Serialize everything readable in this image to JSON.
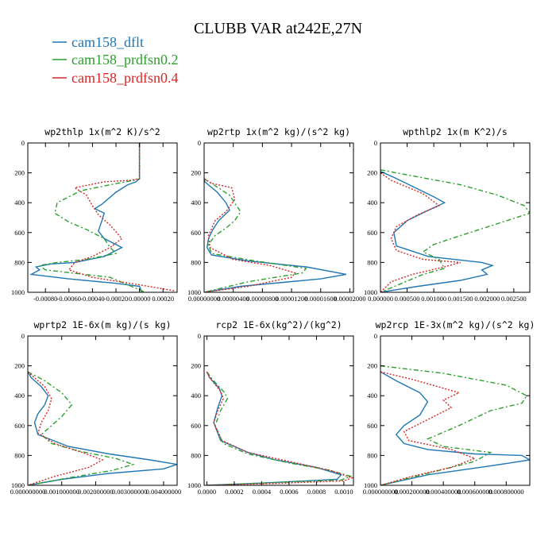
{
  "figure": {
    "title": "CLUBB VAR at242E,27N"
  },
  "legend": [
    {
      "name": "cam158_dflt",
      "color": "#1f77b4"
    },
    {
      "name": "cam158_prdfsn0.2",
      "color": "#2ca02c"
    },
    {
      "name": "cam158_prdfsn0.4",
      "color": "#d62728"
    }
  ],
  "chart_data": [
    {
      "type": "line",
      "title": "wp2thlp  1x(m^2 K)/s^2",
      "ylim": [
        1000,
        0
      ],
      "xlim": [
        -0.00095,
        0.00032
      ],
      "yticks": [
        "0",
        "200",
        "400",
        "600",
        "800",
        "1000"
      ],
      "xticks": [
        "-0.00080",
        "-0.00060",
        "-0.00040",
        "-0.00020",
        "0.00000",
        "0.00020"
      ],
      "xtick_values": [
        -0.0008,
        -0.0006,
        -0.0004,
        -0.0002,
        0.0,
        0.0002
      ],
      "series": [
        {
          "name": "cam158_dflt",
          "x": [
            0.0,
            0.0,
            -3e-05,
            -0.0001,
            -0.0002,
            -0.00032,
            -0.00038,
            -0.0003,
            -0.00032,
            -0.00035,
            -0.0003,
            -0.00015,
            -0.0003,
            -0.00055,
            -0.00075,
            -0.00088,
            -0.00085,
            -0.00092,
            -0.0006,
            -0.0002,
            0.0,
            2e-05
          ],
          "y": [
            0,
            240,
            260,
            280,
            330,
            410,
            440,
            470,
            520,
            590,
            640,
            700,
            760,
            800,
            810,
            830,
            850,
            880,
            910,
            940,
            960,
            1000
          ]
        },
        {
          "name": "cam158_prdfsn0.2",
          "x": [
            0.0,
            0.0,
            -5e-05,
            -0.00025,
            -0.0005,
            -0.0007,
            -0.00072,
            -0.0006,
            -0.00045,
            -0.0003,
            -0.00025,
            -0.0002,
            -0.00045,
            -0.0007,
            -0.00085,
            -0.0008,
            -0.00025,
            5e-05
          ],
          "y": [
            0,
            240,
            250,
            280,
            320,
            400,
            470,
            530,
            580,
            640,
            700,
            740,
            780,
            800,
            820,
            850,
            900,
            1000
          ]
        },
        {
          "name": "cam158_prdfsn0.4",
          "x": [
            0.0,
            0.0,
            -8e-05,
            -0.0003,
            -0.00055,
            -0.00045,
            -0.0004,
            -0.00035,
            -0.00025,
            -0.00015,
            -0.00025,
            -0.0004,
            -0.00055,
            -0.0006,
            -0.0004,
            0.0,
            0.0003
          ],
          "y": [
            0,
            240,
            250,
            260,
            300,
            350,
            420,
            480,
            550,
            640,
            700,
            760,
            800,
            850,
            900,
            950,
            990
          ]
        }
      ]
    },
    {
      "type": "line",
      "title": "wp2rtp  1x(m^2 kg)/(s^2 kg)",
      "ylim": [
        1000,
        0
      ],
      "xlim": [
        0.0,
        2.05e-05
      ],
      "yticks": [
        "0",
        "200",
        "400",
        "600",
        "800",
        "1000"
      ],
      "xticks": [
        "0.00000000",
        "0.00000400",
        "0.00000800",
        "0.00001200",
        "0.00001600",
        "0.00002000"
      ],
      "xtick_values": [
        0.0,
        4e-06,
        8e-06,
        1.2e-05,
        1.6e-05,
        2e-05
      ],
      "series": [
        {
          "name": "cam158_dflt",
          "x": [
            0.0,
            1e-07,
            1.8e-06,
            3e-06,
            3.5e-06,
            2e-06,
            1.2e-06,
            6e-07,
            4e-07,
            1e-06,
            6e-06,
            1.4e-05,
            1.95e-05,
            1.6e-05,
            5e-06,
            0.0
          ],
          "y": [
            240,
            260,
            330,
            400,
            450,
            520,
            580,
            640,
            700,
            750,
            790,
            830,
            880,
            910,
            960,
            1000
          ]
        },
        {
          "name": "cam158_prdfsn0.2",
          "x": [
            0.0,
            1e-06,
            3.5e-06,
            5e-06,
            4.2e-06,
            3e-06,
            1.5e-06,
            6e-07,
            1e-06,
            7e-06,
            1.4e-05,
            1.35e-05,
            6e-06,
            0.0
          ],
          "y": [
            240,
            270,
            350,
            460,
            520,
            570,
            620,
            680,
            740,
            790,
            840,
            870,
            930,
            1000
          ]
        },
        {
          "name": "cam158_prdfsn0.4",
          "x": [
            0.0,
            1e-06,
            3.8e-06,
            4.2e-06,
            3e-06,
            1.5e-06,
            6e-07,
            8e-07,
            4e-06,
            9e-06,
            1.25e-05,
            1.2e-05,
            6e-06,
            0.0
          ],
          "y": [
            240,
            270,
            300,
            380,
            460,
            520,
            620,
            700,
            780,
            820,
            870,
            900,
            960,
            1000
          ]
        }
      ]
    },
    {
      "type": "line",
      "title": "wpthlp2  1x(m K^2)/s",
      "ylim": [
        1000,
        0
      ],
      "xlim": [
        0.0,
        0.0028
      ],
      "yticks": [
        "0",
        "200",
        "400",
        "600",
        "800",
        "1000"
      ],
      "xticks": [
        "0.000000",
        "0.000500",
        "0.001000",
        "0.001500",
        "0.002000",
        "0.002500"
      ],
      "xtick_values": [
        0.0,
        0.0005,
        0.001,
        0.0015,
        0.002,
        0.0025
      ],
      "series": [
        {
          "name": "cam158_dflt",
          "x": [
            0.0,
            0.00025,
            0.001,
            0.0012,
            0.0009,
            0.0005,
            0.00025,
            0.0003,
            0.0009,
            0.0019,
            0.0021,
            0.0019,
            0.002,
            0.0015,
            0.0007,
            0.0
          ],
          "y": [
            190,
            230,
            360,
            400,
            450,
            520,
            600,
            690,
            760,
            800,
            820,
            850,
            880,
            920,
            960,
            1000
          ]
        },
        {
          "name": "cam158_prdfsn0.2",
          "x": [
            0.0,
            0.0006,
            0.0015,
            0.0022,
            0.0027,
            0.0028,
            0.0022,
            0.0015,
            0.001,
            0.0008,
            0.0011,
            0.0012,
            0.0008,
            0.0004,
            0.0
          ],
          "y": [
            180,
            220,
            280,
            350,
            420,
            470,
            540,
            620,
            680,
            730,
            780,
            840,
            880,
            940,
            1000
          ]
        },
        {
          "name": "cam158_prdfsn0.4",
          "x": [
            0.0,
            0.0002,
            0.0008,
            0.0011,
            0.0007,
            0.0003,
            0.0002,
            0.0003,
            0.0008,
            0.0015,
            0.0012,
            0.0006,
            0.0002,
            0.0
          ],
          "y": [
            200,
            250,
            340,
            420,
            480,
            560,
            640,
            720,
            780,
            800,
            830,
            880,
            930,
            1000
          ]
        }
      ]
    },
    {
      "type": "line",
      "title": "wprtp2  1E-6x(m kg)/(s kg)",
      "ylim": [
        1000,
        0
      ],
      "xlim": [
        0.0,
        0.0044
      ],
      "yticks": [
        "0",
        "200",
        "400",
        "600",
        "800",
        "1000"
      ],
      "xticks": [
        "0.000000000",
        "0.001000000",
        "0.002000000",
        "0.003000000",
        "0.004000000"
      ],
      "xtick_values": [
        0.0,
        0.001,
        0.002,
        0.003,
        0.004
      ],
      "series": [
        {
          "name": "cam158_dflt",
          "x": [
            0.0,
            0.0001,
            0.0004,
            0.0006,
            0.0005,
            0.0003,
            0.0002,
            0.0003,
            0.0012,
            0.0024,
            0.0036,
            0.0044,
            0.004,
            0.0024,
            0.001,
            0.0
          ],
          "y": [
            240,
            280,
            340,
            400,
            460,
            520,
            580,
            660,
            740,
            790,
            830,
            860,
            890,
            920,
            960,
            1000
          ]
        },
        {
          "name": "cam158_prdfsn0.2",
          "x": [
            0.0,
            0.0005,
            0.001,
            0.0013,
            0.001,
            0.0007,
            0.0004,
            0.0007,
            0.0015,
            0.0026,
            0.0031,
            0.0025,
            0.0012,
            0.0
          ],
          "y": [
            240,
            300,
            380,
            460,
            540,
            600,
            660,
            720,
            770,
            820,
            860,
            900,
            950,
            1000
          ]
        },
        {
          "name": "cam158_prdfsn0.4",
          "x": [
            0.0,
            0.0002,
            0.0005,
            0.0007,
            0.0006,
            0.0004,
            0.0003,
            0.0008,
            0.0016,
            0.0022,
            0.0018,
            0.0008,
            0.0
          ],
          "y": [
            240,
            280,
            340,
            420,
            500,
            580,
            650,
            720,
            780,
            830,
            880,
            940,
            1000
          ]
        }
      ]
    },
    {
      "type": "line",
      "title": "rcp2  1E-6x(kg^2)/(kg^2)",
      "ylim": [
        1000,
        0
      ],
      "xlim": [
        -2e-05,
        0.00107
      ],
      "yticks": [
        "0",
        "200",
        "400",
        "600",
        "800",
        "1000"
      ],
      "xticks": [
        "0.0000",
        "0.0002",
        "0.0004",
        "0.0006",
        "0.0008",
        "0.0010"
      ],
      "xtick_values": [
        0.0,
        0.0002,
        0.0004,
        0.0006,
        0.0008,
        0.001
      ],
      "series": [
        {
          "name": "cam158_dflt",
          "x": [
            0.0,
            2e-05,
            9e-05,
            0.00011,
            8e-05,
            5e-05,
            0.0001,
            0.0003,
            0.0005,
            0.0008,
            0.00098,
            0.00095,
            0.0004,
            0.0
          ],
          "y": [
            240,
            280,
            350,
            400,
            480,
            580,
            700,
            780,
            830,
            880,
            930,
            960,
            985,
            1000
          ]
        },
        {
          "name": "cam158_prdfsn0.2",
          "x": [
            0.0,
            4e-05,
            0.00013,
            0.00015,
            0.0001,
            6e-05,
            0.00012,
            0.0003,
            0.0006,
            0.0009,
            0.00105,
            0.00098,
            0.0004,
            0.0
          ],
          "y": [
            240,
            290,
            380,
            420,
            500,
            600,
            720,
            790,
            850,
            900,
            940,
            965,
            985,
            1000
          ]
        },
        {
          "name": "cam158_prdfsn0.4",
          "x": [
            0.0,
            3e-05,
            0.0001,
            0.00012,
            8e-05,
            5e-05,
            0.00011,
            0.0003,
            0.0006,
            0.0009,
            0.00106,
            0.001,
            0.0005,
            0.0
          ],
          "y": [
            240,
            290,
            370,
            420,
            500,
            580,
            700,
            780,
            840,
            900,
            950,
            970,
            988,
            1000
          ]
        }
      ]
    },
    {
      "type": "line",
      "title": "wp2rcp  1E-3x(m^2 kg)/(s^2 kg)",
      "ylim": [
        1000,
        0
      ],
      "xlim": [
        0.0,
        0.00095
      ],
      "yticks": [
        "0",
        "200",
        "400",
        "600",
        "800",
        "1000"
      ],
      "xticks": [
        "0.000000000",
        "0.000200000",
        "0.000400000",
        "0.000600000",
        "0.000800000"
      ],
      "xtick_values": [
        0.0,
        0.0002,
        0.0004,
        0.0006,
        0.0008
      ],
      "series": [
        {
          "name": "cam158_dflt",
          "x": [
            0.0,
            0.0001,
            0.00025,
            0.0003,
            0.00025,
            0.00015,
            0.0001,
            0.00015,
            0.0003,
            0.0006,
            0.0009,
            0.00095,
            0.0007,
            0.0003,
            0.0
          ],
          "y": [
            240,
            300,
            380,
            440,
            530,
            600,
            660,
            720,
            760,
            790,
            800,
            830,
            870,
            930,
            1000
          ]
        },
        {
          "name": "cam158_prdfsn0.2",
          "x": [
            0.0,
            0.0004,
            0.0008,
            0.00093,
            0.0009,
            0.0007,
            0.0005,
            0.0003,
            0.0004,
            0.0007,
            0.0006,
            0.0003,
            0.0
          ],
          "y": [
            200,
            250,
            330,
            400,
            450,
            500,
            600,
            690,
            740,
            780,
            840,
            920,
            1000
          ]
        },
        {
          "name": "cam158_prdfsn0.4",
          "x": [
            0.0,
            0.0002,
            0.0005,
            0.0004,
            0.00045,
            0.0003,
            0.00015,
            0.00018,
            0.00045,
            0.0006,
            0.00045,
            0.0002,
            0.0
          ],
          "y": [
            240,
            290,
            380,
            430,
            480,
            560,
            640,
            700,
            760,
            820,
            880,
            940,
            1000
          ]
        }
      ]
    }
  ]
}
